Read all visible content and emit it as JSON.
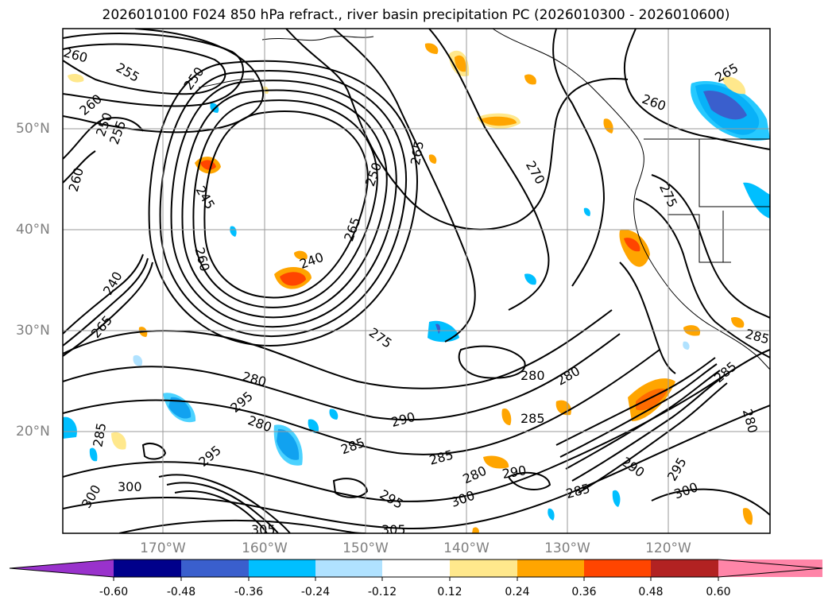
{
  "title": "2026010100 F024 850 hPa refract., river basin precipitation PC (2026010300 - 2026010600)",
  "latitude_labels": [
    "50°N",
    "40°N",
    "30°N",
    "20°N"
  ],
  "longitude_labels": [
    "170°W",
    "160°W",
    "150°W",
    "140°W",
    "130°W",
    "120°W"
  ],
  "contour_labels": [
    "260",
    "255",
    "250",
    "260",
    "250",
    "255",
    "260",
    "245",
    "260",
    "240",
    "265",
    "250",
    "265",
    "270",
    "275",
    "260",
    "265",
    "275",
    "280",
    "280",
    "285",
    "290",
    "295",
    "280",
    "285",
    "295",
    "300",
    "300",
    "285",
    "280",
    "290",
    "285",
    "295",
    "300",
    "305",
    "280",
    "285",
    "290",
    "295",
    "300",
    "285",
    "285",
    "280",
    "265",
    "240",
    "305"
  ],
  "colorbar": {
    "tick_labels": [
      "-0.60",
      "-0.48",
      "-0.36",
      "-0.24",
      "-0.12",
      "0.12",
      "0.24",
      "0.36",
      "0.48",
      "0.60"
    ],
    "colors": [
      "#9932cc",
      "#00008b",
      "#3a5fcd",
      "#00bfff",
      "#b0e2ff",
      "#ffffff",
      "#ffe88c",
      "#ffa500",
      "#ff4500",
      "#b22222",
      "#ff85a8"
    ]
  }
}
